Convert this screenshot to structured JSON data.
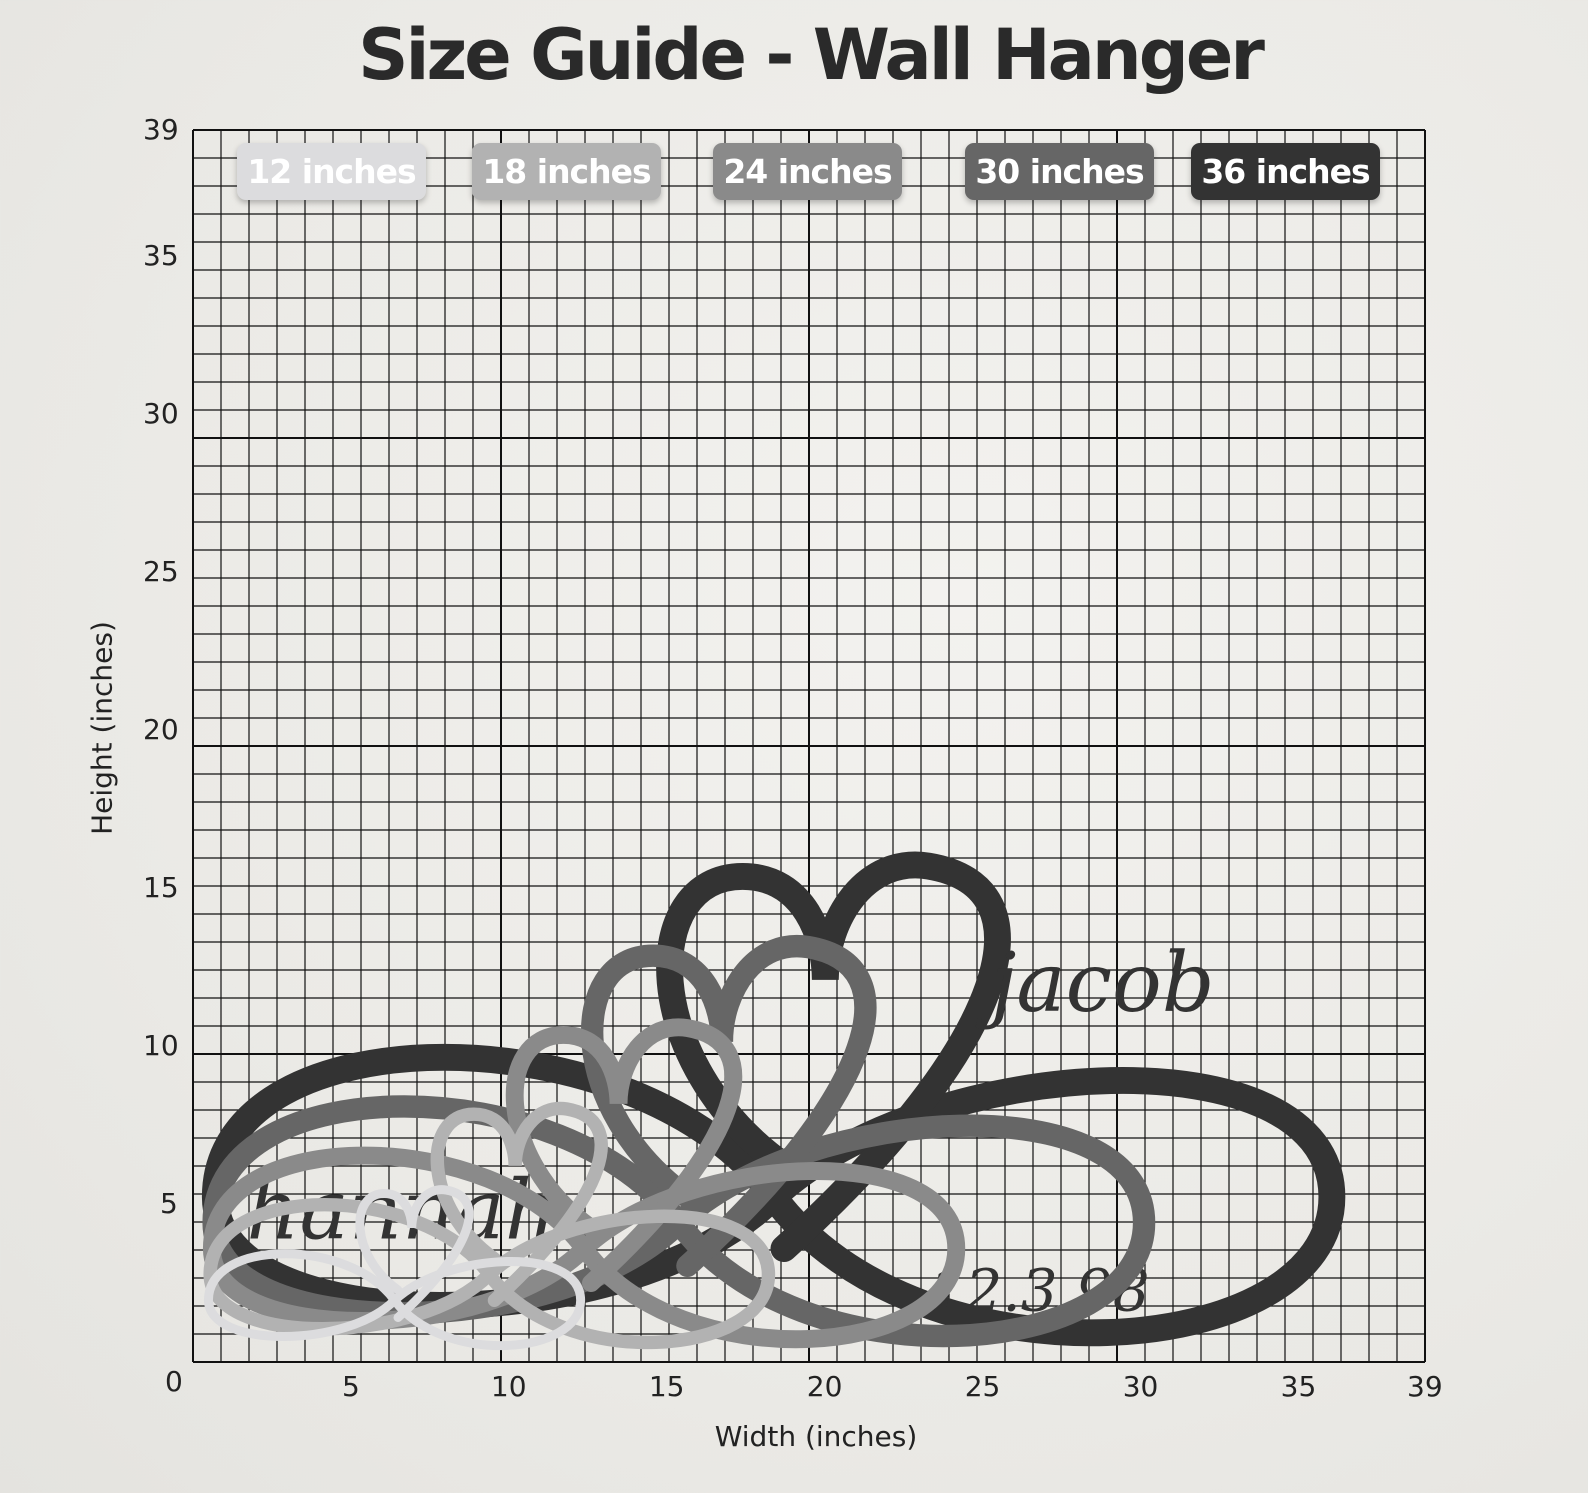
{
  "title": "Size Guide - Wall Hanger",
  "axes": {
    "xlabel": "Width (inches)",
    "ylabel": "Height (inches)",
    "x_ticks": [
      "0",
      "5",
      "10",
      "15",
      "20",
      "25",
      "30",
      "35",
      "39"
    ],
    "y_ticks": [
      "39",
      "35",
      "30",
      "25",
      "20",
      "15",
      "10",
      "5"
    ],
    "range": [
      0,
      39
    ],
    "grid": true
  },
  "sizes": [
    {
      "label": "12 inches",
      "width_in": 12,
      "color": "#dcdcde"
    },
    {
      "label": "18 inches",
      "width_in": 18,
      "color": "#b2b2b2"
    },
    {
      "label": "24 inches",
      "width_in": 24,
      "color": "#8a8a8a"
    },
    {
      "label": "30 inches",
      "width_in": 30,
      "color": "#666666"
    },
    {
      "label": "36 inches",
      "width_in": 36,
      "color": "#333333"
    }
  ],
  "product_lettering": {
    "name_left": "hannah",
    "name_right": "jacob",
    "date": "12.3.98"
  }
}
